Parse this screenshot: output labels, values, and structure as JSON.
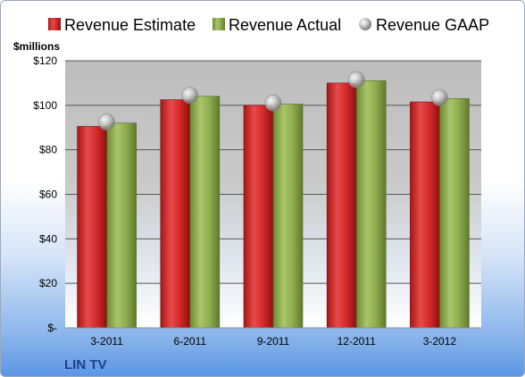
{
  "chart_data": {
    "type": "bar",
    "categories": [
      "3-2011",
      "6-2011",
      "9-2011",
      "12-2011",
      "3-2012"
    ],
    "series": [
      {
        "name": "Revenue Estimate",
        "type": "bar",
        "color": "#d42a2a",
        "values": [
          90.5,
          102.5,
          100.0,
          110.0,
          101.5
        ]
      },
      {
        "name": "Revenue Actual",
        "type": "bar",
        "color": "#8fae4e",
        "values": [
          92.0,
          104.0,
          100.5,
          111.0,
          103.0
        ]
      },
      {
        "name": "Revenue GAAP",
        "type": "marker",
        "color": "#c8c8c8",
        "values": [
          92.5,
          104.5,
          101.0,
          111.5,
          103.5
        ]
      }
    ],
    "ylim": [
      0,
      120
    ],
    "yticks": [
      0,
      20,
      40,
      60,
      80,
      100,
      120
    ],
    "ytick_labels": [
      "$-",
      "$20",
      "$40",
      "$60",
      "$80",
      "$100",
      "$120"
    ],
    "ylabel": "$millions",
    "legend_position": "top",
    "grid": true,
    "company": "LIN TV"
  }
}
